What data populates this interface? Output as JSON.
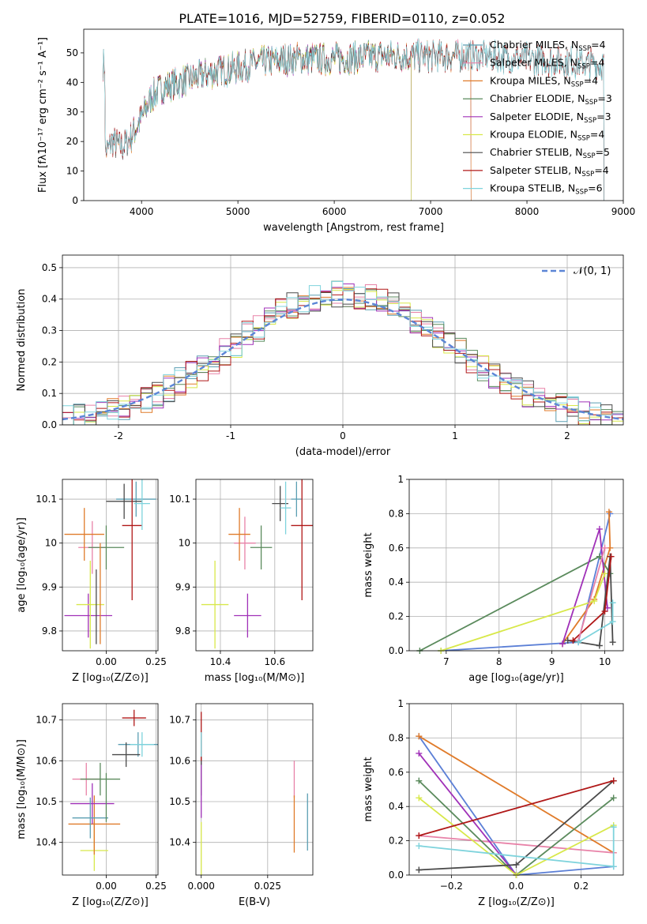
{
  "title": "PLATE=1016, MJD=52759, FIBERID=0110, z=0.052",
  "colors": {
    "Chabrier MILES": "#5b9fb3",
    "Salpeter MILES": "#e882a8",
    "Kroupa MILES": "#e07b2a",
    "Chabrier ELODIE": "#5a8a5c",
    "Salpeter ELODIE": "#a030b8",
    "Kroupa ELODIE": "#d8e84a",
    "Chabrier STELIB": "#4a4a4a",
    "Salpeter STELIB": "#b01818",
    "Kroupa STELIB": "#7ed3dc",
    "normal": "#5b85d6",
    "miles_blue": "#5b7fd6"
  },
  "chart_data": [
    {
      "type": "line",
      "title": "PLATE=1016, MJD=52759, FIBERID=0110, z=0.052",
      "xlabel": "wavelength [Angstrom, rest frame]",
      "ylabel": "Flux [fλ10⁻¹⁷ erg cm⁻² s⁻¹ A⁻¹]",
      "xlim": [
        3400,
        9000
      ],
      "ylim": [
        0,
        58
      ],
      "xticks": [
        4000,
        5000,
        6000,
        7000,
        8000,
        9000
      ],
      "yticks": [
        0,
        10,
        20,
        30,
        40,
        50
      ],
      "legend": "top-right",
      "series": [
        {
          "name": "Chabrier MILES, N",
          "nssp": "=4",
          "x_range": [
            3600,
            7420
          ]
        },
        {
          "name": "Salpeter MILES, N",
          "nssp": "=4",
          "x_range": [
            3600,
            7420
          ]
        },
        {
          "name": "Kroupa MILES, N",
          "nssp": "=4",
          "x_range": [
            3600,
            7420
          ]
        },
        {
          "name": "Chabrier ELODIE, N",
          "nssp": "=3",
          "x_range": [
            3900,
            6800
          ]
        },
        {
          "name": "Salpeter ELODIE, N",
          "nssp": "=3",
          "x_range": [
            3900,
            6800
          ]
        },
        {
          "name": "Kroupa ELODIE, N",
          "nssp": "=4",
          "x_range": [
            3900,
            6800
          ]
        },
        {
          "name": "Chabrier STELIB, N",
          "nssp": "=5",
          "x_range": [
            3600,
            8800
          ]
        },
        {
          "name": "Salpeter STELIB, N",
          "nssp": "=4",
          "x_range": [
            3600,
            8800
          ]
        },
        {
          "name": "Kroupa STELIB, N",
          "nssp": "=6",
          "x_range": [
            3600,
            8800
          ]
        }
      ],
      "continuum": [
        [
          3620,
          16
        ],
        [
          3700,
          20
        ],
        [
          3800,
          18
        ],
        [
          3900,
          22
        ],
        [
          4000,
          28
        ],
        [
          4100,
          35
        ],
        [
          4200,
          38
        ],
        [
          4300,
          39
        ],
        [
          4500,
          41
        ],
        [
          4700,
          43
        ],
        [
          5000,
          45
        ],
        [
          5300,
          47
        ],
        [
          5600,
          48
        ],
        [
          6000,
          48
        ],
        [
          6500,
          49
        ],
        [
          7000,
          49
        ],
        [
          7400,
          49
        ],
        [
          8000,
          48
        ],
        [
          8800,
          46
        ]
      ]
    },
    {
      "type": "line",
      "xlabel": "(data-model)/error",
      "ylabel": "Normed distribution",
      "xlim": [
        -2.5,
        2.5
      ],
      "ylim": [
        0,
        0.54
      ],
      "xticks": [
        -2,
        -1,
        0,
        1,
        2
      ],
      "yticks": [
        0.0,
        0.1,
        0.2,
        0.3,
        0.4,
        0.5
      ],
      "legend": "top-right",
      "normal_label": "𝒩(0, 1)"
    },
    {
      "type": "scatter",
      "xlabel": "Z [log₁₀(Z/Z⊙)]",
      "ylabel": "age  [log₁₀(age/yr)]",
      "xlim": [
        -0.22,
        0.26
      ],
      "ylim": [
        9.755,
        10.145
      ],
      "xticks": [
        -0.0,
        0.25
      ],
      "xticklabels": [
        "0.00",
        "0.25"
      ],
      "yticks": [
        9.8,
        9.9,
        10.0,
        10.1
      ],
      "points": [
        {
          "s": "Chabrier MILES",
          "x": 0.15,
          "y": 10.1,
          "xe": 0.1,
          "ye": 0.04
        },
        {
          "s": "Salpeter MILES",
          "x": -0.07,
          "y": 9.99,
          "xe": 0.07,
          "ye": 0.06
        },
        {
          "s": "Kroupa MILES",
          "x": -0.11,
          "y": 10.02,
          "xe": 0.1,
          "ye": 0.06
        },
        {
          "s": "Chabrier ELODIE",
          "x": 0.0,
          "y": 9.99,
          "xe": 0.09,
          "ye": 0.05
        },
        {
          "s": "Salpeter ELODIE",
          "x": -0.09,
          "y": 9.835,
          "xe": 0.12,
          "ye": 0.05
        },
        {
          "s": "Kroupa ELODIE",
          "x": -0.08,
          "y": 9.86,
          "xe": 0.07,
          "ye": 0.1
        },
        {
          "s": "Chabrier STELIB",
          "x": 0.09,
          "y": 10.095,
          "xe": 0.09,
          "ye": 0.04
        },
        {
          "s": "Salpeter STELIB",
          "x": 0.13,
          "y": 10.04,
          "xe": 0.05,
          "ye": 0.17
        },
        {
          "s": "Kroupa STELIB",
          "x": 0.18,
          "y": 10.09,
          "xe": 0.04,
          "ye": 0.06
        },
        {
          "s": "Kroupa MILES",
          "x": -0.03,
          "y": 9.885,
          "xe": 0.0,
          "ye": 0.115
        },
        {
          "s": "Chabrier STELIB",
          "x": -0.05,
          "y": 9.855,
          "xe": 0.0,
          "ye": 0.085
        }
      ]
    },
    {
      "type": "scatter",
      "xlabel": "mass [log₁₀(M/M⊙)]",
      "xlim": [
        10.31,
        10.74
      ],
      "ylim": [
        9.755,
        10.145
      ],
      "xticks": [
        10.4,
        10.6
      ],
      "xticklabels": [
        "10.4",
        "10.6"
      ],
      "yticks": [
        9.8,
        9.9,
        10.0,
        10.1
      ],
      "points": [
        {
          "s": "Chabrier MILES",
          "x": 10.68,
          "y": 10.1,
          "xe": 0.02,
          "ye": 0.04
        },
        {
          "s": "Salpeter MILES",
          "x": 10.49,
          "y": 10.0,
          "xe": 0.04,
          "ye": 0.06
        },
        {
          "s": "Kroupa MILES",
          "x": 10.47,
          "y": 10.02,
          "xe": 0.04,
          "ye": 0.06
        },
        {
          "s": "Chabrier ELODIE",
          "x": 10.55,
          "y": 9.99,
          "xe": 0.04,
          "ye": 0.05
        },
        {
          "s": "Salpeter ELODIE",
          "x": 10.5,
          "y": 9.835,
          "xe": 0.05,
          "ye": 0.05
        },
        {
          "s": "Kroupa ELODIE",
          "x": 10.38,
          "y": 9.86,
          "xe": 0.05,
          "ye": 0.1
        },
        {
          "s": "Chabrier STELIB",
          "x": 10.62,
          "y": 10.09,
          "xe": 0.03,
          "ye": 0.04
        },
        {
          "s": "Salpeter STELIB",
          "x": 10.7,
          "y": 10.04,
          "xe": 0.04,
          "ye": 0.17
        },
        {
          "s": "Kroupa STELIB",
          "x": 10.64,
          "y": 10.08,
          "xe": 0.02,
          "ye": 0.06
        }
      ]
    },
    {
      "type": "line",
      "xlabel": "age  [log₁₀(age/yr)]",
      "ylabel": "mass weight",
      "xlim": [
        6.3,
        10.35
      ],
      "ylim": [
        0,
        1.0
      ],
      "xticks": [
        7,
        8,
        9,
        10
      ],
      "yticks": [
        0.0,
        0.2,
        0.4,
        0.6,
        0.8,
        1.0
      ]
    },
    {
      "type": "scatter",
      "xlabel": "Z [log₁₀(Z/Z⊙)]",
      "ylabel": "mass [log₁₀(M/M⊙)]",
      "xlim": [
        -0.22,
        0.26
      ],
      "ylim": [
        10.32,
        10.74
      ],
      "xticks": [
        0.0,
        0.25
      ],
      "xticklabels": [
        "0.00",
        "0.25"
      ],
      "yticks": [
        10.4,
        10.5,
        10.6,
        10.7
      ],
      "points": [
        {
          "s": "Chabrier MILES",
          "x": 0.16,
          "y": 10.64,
          "xe": 0.1,
          "ye": 0.03
        },
        {
          "s": "Salpeter MILES",
          "x": -0.1,
          "y": 10.555,
          "xe": 0.07,
          "ye": 0.04
        },
        {
          "s": "Kroupa MILES",
          "x": -0.06,
          "y": 10.445,
          "xe": 0.13,
          "ye": 0.07
        },
        {
          "s": "Chabrier ELODIE",
          "x": -0.03,
          "y": 10.555,
          "xe": 0.1,
          "ye": 0.04
        },
        {
          "s": "Salpeter ELODIE",
          "x": -0.07,
          "y": 10.495,
          "xe": 0.11,
          "ye": 0.05
        },
        {
          "s": "Kroupa ELODIE",
          "x": -0.06,
          "y": 10.38,
          "xe": 0.07,
          "ye": 0.05
        },
        {
          "s": "Chabrier STELIB",
          "x": 0.1,
          "y": 10.615,
          "xe": 0.07,
          "ye": 0.03
        },
        {
          "s": "Salpeter STELIB",
          "x": 0.14,
          "y": 10.705,
          "xe": 0.06,
          "ye": 0.02
        },
        {
          "s": "Kroupa STELIB",
          "x": 0.18,
          "y": 10.64,
          "xe": 0.06,
          "ye": 0.03
        },
        {
          "s": "Chabrier MILES",
          "x": -0.08,
          "y": 10.46,
          "xe": 0.09,
          "ye": 0.05
        },
        {
          "s": "Kroupa MILES",
          "x": -0.06,
          "y": 10.41,
          "xe": 0.0,
          "ye": 0.04
        },
        {
          "s": "Chabrier ELODIE",
          "x": 0.0,
          "y": 10.51,
          "xe": 0.0,
          "ye": 0.06
        }
      ]
    },
    {
      "type": "scatter",
      "xlabel": "E(B-V)",
      "xlim": [
        -0.002,
        0.042
      ],
      "ylim": [
        10.32,
        10.74
      ],
      "xticks": [
        0.0,
        0.025
      ],
      "xticklabels": [
        "0.000",
        "0.025"
      ],
      "yticks": [
        10.4,
        10.5,
        10.6,
        10.7
      ],
      "points": [
        {
          "s": "Chabrier MILES",
          "x": 0.0,
          "y": 10.64,
          "xe": 0.0,
          "ye": 0.03
        },
        {
          "s": "Salpeter MILES",
          "x": 0.035,
          "y": 10.555,
          "xe": 0.0,
          "ye": 0.045
        },
        {
          "s": "Kroupa MILES",
          "x": 0.035,
          "y": 10.445,
          "xe": 0.0,
          "ye": 0.07
        },
        {
          "s": "Chabrier ELODIE",
          "x": 0.0,
          "y": 10.555,
          "xe": 0.0,
          "ye": 0.04
        },
        {
          "s": "Salpeter ELODIE",
          "x": 0.0,
          "y": 10.55,
          "xe": 0.0,
          "ye": 0.09
        },
        {
          "s": "Kroupa ELODIE",
          "x": 0.0,
          "y": 10.38,
          "xe": 0.0,
          "ye": 0.07
        },
        {
          "s": "Chabrier STELIB",
          "x": 0.0,
          "y": 10.62,
          "xe": 0.0,
          "ye": 0.03
        },
        {
          "s": "Salpeter STELIB",
          "x": 0.0,
          "y": 10.66,
          "xe": 0.0,
          "ye": 0.06
        },
        {
          "s": "Kroupa STELIB",
          "x": 0.0,
          "y": 10.64,
          "xe": 0.0,
          "ye": 0.03
        },
        {
          "s": "Chabrier MILES",
          "x": 0.04,
          "y": 10.45,
          "xe": 0.0,
          "ye": 0.07
        }
      ]
    },
    {
      "type": "line",
      "xlabel": "Z [log₁₀(Z/Z⊙)]",
      "ylabel": "mass weight",
      "xlim": [
        -0.33,
        0.33
      ],
      "ylim": [
        0,
        1.0
      ],
      "xticks": [
        -0.2,
        0.0,
        0.2
      ],
      "xticklabels": [
        "−0.2",
        "0.0",
        "0.2"
      ],
      "yticks": [
        0.0,
        0.2,
        0.4,
        0.6,
        0.8,
        1.0
      ]
    }
  ],
  "weights_age": [
    {
      "s": "miles_blue",
      "pts": [
        [
          6.9,
          0.0
        ],
        [
          9.5,
          0.05
        ],
        [
          10.1,
          0.8
        ]
      ]
    },
    {
      "s": "Kroupa MILES",
      "pts": [
        [
          9.2,
          0.04
        ],
        [
          9.8,
          0.3
        ],
        [
          10.1,
          0.6
        ],
        [
          10.08,
          0.81
        ]
      ]
    },
    {
      "s": "Chabrier ELODIE",
      "pts": [
        [
          6.5,
          0.0
        ],
        [
          9.9,
          0.55
        ],
        [
          10.1,
          0.45
        ]
      ]
    },
    {
      "s": "Salpeter ELODIE",
      "pts": [
        [
          9.2,
          0.04
        ],
        [
          9.9,
          0.71
        ],
        [
          10.05,
          0.25
        ]
      ]
    },
    {
      "s": "Kroupa ELODIE",
      "pts": [
        [
          6.9,
          0.0
        ],
        [
          9.8,
          0.29
        ],
        [
          10.0,
          0.45
        ]
      ]
    },
    {
      "s": "Chabrier STELIB",
      "pts": [
        [
          9.3,
          0.06
        ],
        [
          9.9,
          0.03
        ],
        [
          10.1,
          0.55
        ],
        [
          10.15,
          0.05
        ]
      ]
    },
    {
      "s": "Salpeter STELIB",
      "pts": [
        [
          9.4,
          0.06
        ],
        [
          10.0,
          0.23
        ],
        [
          10.12,
          0.55
        ]
      ]
    },
    {
      "s": "Salpeter MILES",
      "pts": [
        [
          9.5,
          0.06
        ],
        [
          10.0,
          0.6
        ]
      ]
    },
    {
      "s": "Kroupa STELIB",
      "pts": [
        [
          9.5,
          0.05
        ],
        [
          10.15,
          0.17
        ],
        [
          10.15,
          0.28
        ]
      ]
    }
  ],
  "weights_Z": [
    {
      "s": "miles_blue",
      "pts": [
        [
          -0.3,
          0.81
        ],
        [
          0.0,
          0.0
        ],
        [
          0.3,
          0.05
        ]
      ]
    },
    {
      "s": "Kroupa MILES",
      "pts": [
        [
          -0.3,
          0.81
        ],
        [
          0.3,
          0.13
        ]
      ]
    },
    {
      "s": "Salpeter MILES",
      "pts": [
        [
          -0.3,
          0.23
        ],
        [
          0.3,
          0.13
        ]
      ]
    },
    {
      "s": "Chabrier ELODIE",
      "pts": [
        [
          -0.3,
          0.55
        ],
        [
          0.0,
          0.0
        ],
        [
          0.3,
          0.45
        ]
      ]
    },
    {
      "s": "Salpeter ELODIE",
      "pts": [
        [
          -0.3,
          0.71
        ],
        [
          0.0,
          0.0
        ]
      ]
    },
    {
      "s": "Kroupa ELODIE",
      "pts": [
        [
          -0.3,
          0.45
        ],
        [
          0.0,
          0.0
        ],
        [
          0.3,
          0.29
        ]
      ]
    },
    {
      "s": "Chabrier STELIB",
      "pts": [
        [
          -0.3,
          0.03
        ],
        [
          0.0,
          0.06
        ],
        [
          0.3,
          0.55
        ]
      ]
    },
    {
      "s": "Salpeter STELIB",
      "pts": [
        [
          -0.3,
          0.23
        ],
        [
          0.3,
          0.55
        ]
      ]
    },
    {
      "s": "Kroupa STELIB",
      "pts": [
        [
          -0.3,
          0.17
        ],
        [
          0.3,
          0.05
        ],
        [
          0.3,
          0.28
        ]
      ]
    }
  ]
}
